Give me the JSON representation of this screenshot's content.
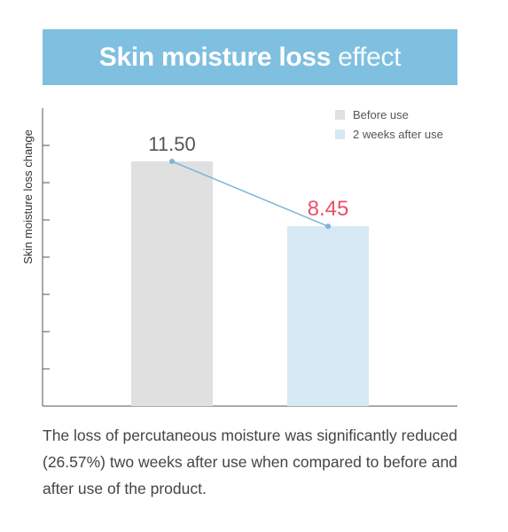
{
  "chart_data": {
    "type": "bar",
    "title_main": "Skin moisture loss",
    "title_thin": "effect",
    "ylabel": "Skin moisture loss change",
    "categories": [
      "Before use",
      "2 weeks after use"
    ],
    "values": [
      11.5,
      8.45
    ],
    "value_labels": [
      "11.50",
      "8.45"
    ],
    "ylim": [
      0,
      14
    ],
    "legend": [
      {
        "label": "Before use",
        "color": "#e0e0e0"
      },
      {
        "label": "2 weeks after use",
        "color": "#d5e8f3"
      }
    ],
    "legend_position": "top-right",
    "bar_colors": [
      "#e0e0e0",
      "#d5e8f3"
    ],
    "label_colors": [
      "#555555",
      "#e8506a"
    ],
    "connector_color": "#7fb5d6",
    "connector": true,
    "grid": false
  },
  "caption": "The loss of percutaneous moisture was significantly reduced (26.57%) two weeks after use when compared to before and after use of the product."
}
